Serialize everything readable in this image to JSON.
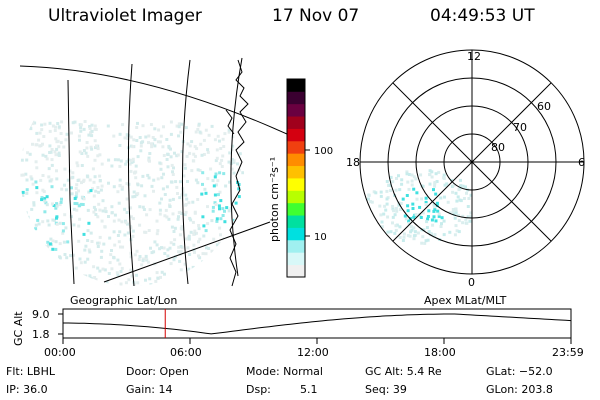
{
  "header": {
    "instrument": "Ultraviolet Imager",
    "date": "17 Nov 07",
    "time": "04:49:53 UT"
  },
  "colorbar": {
    "unit_label": "photon cm⁻²s⁻¹",
    "ticks": [
      "100",
      "10"
    ],
    "colors": [
      "#000000",
      "#3a0030",
      "#6a0040",
      "#a0001c",
      "#d40010",
      "#f04010",
      "#ff8c00",
      "#ffc000",
      "#ffff00",
      "#b8ff00",
      "#40ff30",
      "#00e0a0",
      "#00e0e0",
      "#a0f0f0",
      "#d8f8f8",
      "#f0f0f0"
    ]
  },
  "geo_panel": {
    "label": "Geographic Lat/Lon"
  },
  "polar_panel": {
    "label": "Apex MLat/MLT",
    "mlt_labels": {
      "top": "12",
      "left": "18",
      "right": "6",
      "bottom": "0"
    },
    "lat_labels": [
      "60",
      "70",
      "80"
    ]
  },
  "altitude_plot": {
    "ylabel": "GC Alt",
    "ytick_max": "9.0",
    "ytick_min": "1.8",
    "xticks": [
      "00:00",
      "06:00",
      "12:00",
      "18:00",
      "23:59"
    ],
    "current_time_hours": 4.83,
    "marker_color": "#d40000"
  },
  "info": {
    "row1": {
      "filter": "Flt: LBHL",
      "door": "Door: Open",
      "mode": "Mode: Normal",
      "gc_alt": "GC Alt: 5.4 Re",
      "glat": "GLat: −52.0"
    },
    "row2": {
      "ip": "IP: 36.0",
      "gain": "Gain: 14",
      "dsp_label": "Dsp:",
      "dsp_value": "5.1",
      "seq": "Seq: 39",
      "glon": "GLon: 203.8"
    }
  }
}
